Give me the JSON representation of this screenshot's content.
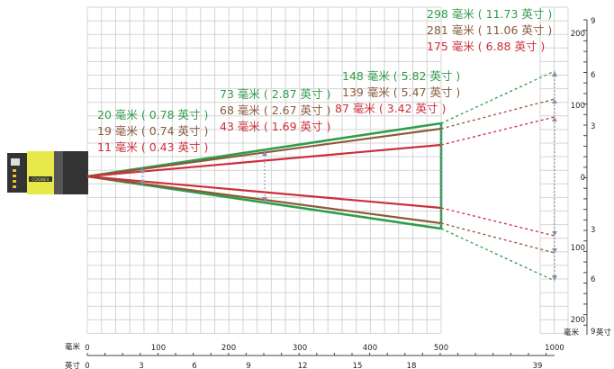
{
  "colors": {
    "green": "#2e9d4a",
    "brown": "#8a5a3a",
    "red": "#cc2e3a",
    "grid": "#d4d4d4"
  },
  "device": {
    "logo": "COGNEX",
    "icon": "camera-icon"
  },
  "fov_labels": [
    {
      "near": "20 毫米 ( 0.78 英寸 )",
      "mid": "73 毫米 ( 2.87 英寸 )",
      "far": "148 毫米 ( 5.82 英寸 )",
      "edge": "298 毫米 ( 11.73 英寸 )"
    },
    {
      "near": "19 毫米 ( 0.74 英寸 )",
      "mid": "68 毫米 ( 2.67 英寸 )",
      "far": "139 毫米 ( 5.47 英寸 )",
      "edge": "281 毫米 ( 11.06 英寸 )"
    },
    {
      "near": "11 毫米 ( 0.43 英寸 )",
      "mid": "43 毫米 ( 1.69 英寸 )",
      "far": "87 毫米 ( 3.42 英寸 )",
      "edge": "175 毫米 ( 6.88 英寸 )"
    }
  ],
  "bottom_axis": {
    "mm_label": "毫米",
    "in_label": "英寸",
    "mm_ticks": [
      "0",
      "100",
      "200",
      "300",
      "400",
      "500",
      "1000"
    ],
    "in_ticks": [
      "0",
      "3",
      "6",
      "9",
      "12",
      "15",
      "18",
      "39"
    ]
  },
  "right_axis": {
    "mm_ticks": [
      "200",
      "100",
      "0",
      "100",
      "200"
    ],
    "in_ticks": [
      "9",
      "6",
      "3",
      "3",
      "6",
      "9"
    ],
    "mm_unit": "毫米",
    "in_unit": "英寸"
  }
}
